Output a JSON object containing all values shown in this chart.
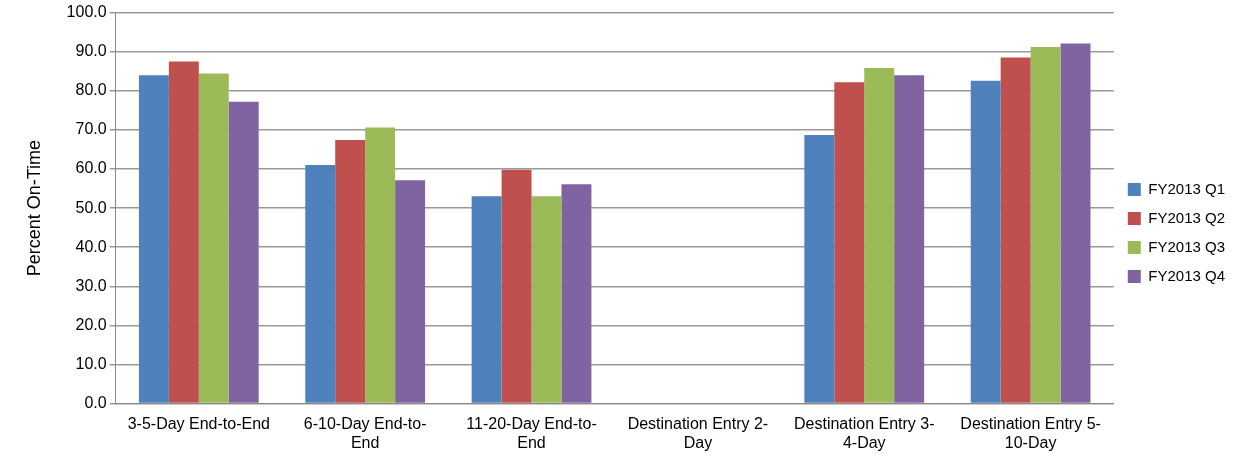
{
  "chart_data": {
    "type": "bar",
    "ylabel": "Percent On-Time",
    "categories": [
      "3-5-Day End-to-End",
      "6-10-Day End-to-End",
      "11-20-Day End-to-End",
      "Destination Entry 2-Day",
      "Destination Entry 3-4-Day",
      "Destination Entry 5-10-Day"
    ],
    "series": [
      {
        "name": "FY2013 Q1",
        "color": "#4f81bd",
        "values": [
          84.0,
          61.0,
          53.0,
          null,
          68.7,
          82.6
        ]
      },
      {
        "name": "FY2013 Q2",
        "color": "#c0504d",
        "values": [
          87.5,
          67.4,
          59.8,
          null,
          82.2,
          88.5
        ]
      },
      {
        "name": "FY2013 Q3",
        "color": "#9bbb59",
        "values": [
          84.4,
          70.6,
          53.0,
          null,
          85.8,
          91.2
        ]
      },
      {
        "name": "FY2013 Q4",
        "color": "#8064a2",
        "values": [
          77.2,
          57.1,
          56.1,
          null,
          84.0,
          92.1
        ]
      }
    ],
    "ylim": [
      0,
      100
    ],
    "yticks": [
      {
        "value": 0,
        "label": "0.0"
      },
      {
        "value": 10,
        "label": "10.0"
      },
      {
        "value": 20,
        "label": "20.0"
      },
      {
        "value": 30,
        "label": "30.0"
      },
      {
        "value": 40,
        "label": "40.0"
      },
      {
        "value": 50,
        "label": "50.0"
      },
      {
        "value": 60,
        "label": "60.0"
      },
      {
        "value": 70,
        "label": "70.0"
      },
      {
        "value": 80,
        "label": "80.0"
      },
      {
        "value": 90,
        "label": "90.0"
      },
      {
        "value": 100,
        "label": "100.0"
      }
    ],
    "grid": "y",
    "legend": "right"
  }
}
